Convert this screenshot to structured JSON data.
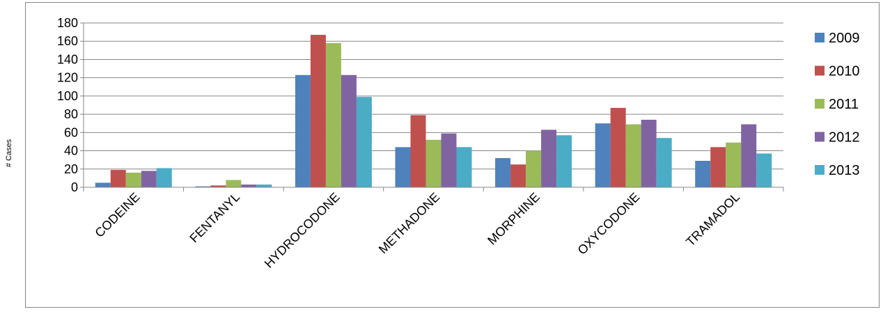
{
  "chart_data": {
    "type": "bar",
    "title": "",
    "xlabel": "",
    "ylabel": "# Cases",
    "ylim": [
      0,
      180
    ],
    "yticks": [
      0,
      20,
      40,
      60,
      80,
      100,
      120,
      140,
      160,
      180
    ],
    "grid": true,
    "legend_position": "right",
    "categories": [
      "CODEINE",
      "FENTANYL",
      "HYDROCODONE",
      "METHADONE",
      "MORPHINE",
      "OXYCODONE",
      "TRAMADOL"
    ],
    "series": [
      {
        "name": "2009",
        "color": "#4f81bd",
        "values": [
          5,
          1,
          123,
          44,
          32,
          70,
          29
        ]
      },
      {
        "name": "2010",
        "color": "#c0504d",
        "values": [
          19,
          2,
          167,
          79,
          25,
          87,
          44
        ]
      },
      {
        "name": "2011",
        "color": "#9bbb59",
        "values": [
          16,
          8,
          158,
          52,
          40,
          69,
          49
        ]
      },
      {
        "name": "2012",
        "color": "#8064a2",
        "values": [
          18,
          3,
          123,
          59,
          63,
          74,
          69
        ]
      },
      {
        "name": "2013",
        "color": "#4bacc6",
        "values": [
          21,
          3,
          99,
          44,
          57,
          54,
          37
        ]
      }
    ]
  }
}
